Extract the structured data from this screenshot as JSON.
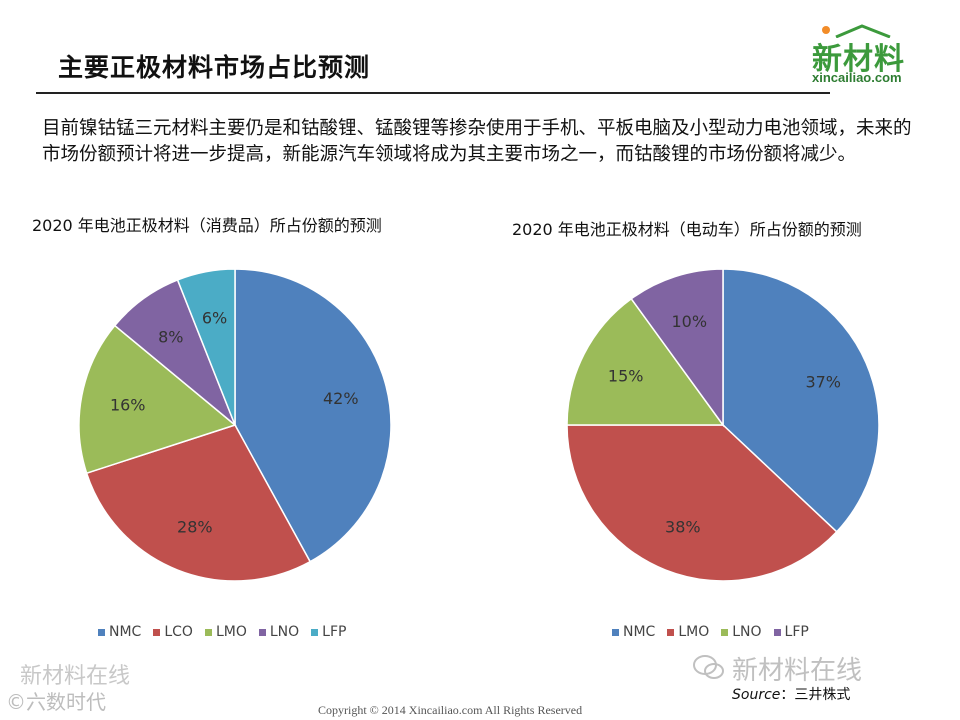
{
  "slide": {
    "title": "主要正极材料市场占比预测",
    "logo_main": "新材料",
    "logo_sub": "xincailiao.com",
    "intro": "目前镍钴锰三元材料主要仍是和钴酸锂、锰酸锂等掺杂使用于手机、平板电脑及小型动力电池领域，未来的市场份额预计将进一步提高，新能源汽车领域将成为其主要市场之一，而钴酸锂的市场份额将减少。",
    "source_label": "Source",
    "source_value": "：三井株式",
    "copyright": "Copyright © 2014   Xincailiao.com    All Rights Reserved",
    "watermarks": [
      "新材料在线",
      "©六数时代",
      "新材料在线"
    ]
  },
  "chart_data": [
    {
      "type": "pie",
      "title": "2020 年电池正极材料（消费品）所占份额的预测",
      "categories": [
        "NMC",
        "LCO",
        "LMO",
        "LNO",
        "LFP"
      ],
      "values": [
        42,
        28,
        16,
        8,
        6
      ],
      "labels": [
        "42%",
        "28%",
        "16%",
        "8%",
        "6%"
      ],
      "colors": [
        "#4f81bd",
        "#c0504d",
        "#9bbb59",
        "#8064a2",
        "#4bacc6"
      ],
      "legend": "bottom"
    },
    {
      "type": "pie",
      "title": "2020 年电池正极材料（电动车）所占份额的预测",
      "categories": [
        "NMC",
        "LMO",
        "LNO",
        "LFP"
      ],
      "values": [
        37,
        38,
        15,
        10
      ],
      "labels": [
        "37%",
        "38%",
        "15%",
        "10%"
      ],
      "colors": [
        "#4f81bd",
        "#c0504d",
        "#9bbb59",
        "#8064a2"
      ],
      "legend": "bottom"
    }
  ]
}
